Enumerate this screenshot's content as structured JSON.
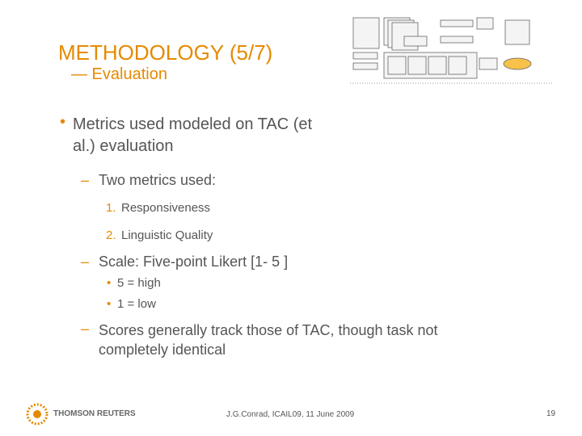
{
  "header": {
    "title": "METHODOLOGY (5/7)",
    "subtitle": "— Evaluation"
  },
  "body": {
    "bullet": "Metrics used modeled on TAC (et al.) evaluation",
    "items": [
      {
        "text": "Two metrics used:",
        "list": [
          {
            "number": "1.",
            "text": "Responsiveness"
          },
          {
            "number": "2.",
            "text": "Linguistic Quality"
          }
        ]
      },
      {
        "text": "Scale: Five-point Likert [1- 5 ]",
        "subitems": [
          "5 = high",
          "1 = low"
        ]
      },
      {
        "text": "Scores generally track those of TAC, though task not completely identical"
      }
    ]
  },
  "footer": {
    "logo": "THOMSON REUTERS",
    "citation": "J.G.Conrad, ICAIL09, 11 June 2009",
    "page": "19"
  }
}
